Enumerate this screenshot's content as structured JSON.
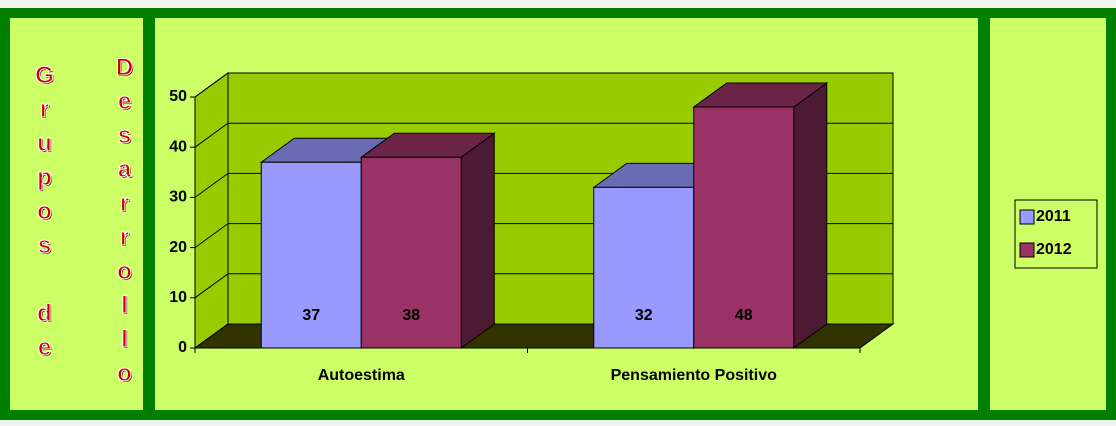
{
  "side_title": [
    "Grupos de",
    "Desarrollo"
  ],
  "chart_data": {
    "type": "bar3d",
    "categories": [
      "Autoestima",
      "Pensamiento Positivo"
    ],
    "series": [
      {
        "name": "2011",
        "color": "#9999ff",
        "values": [
          37,
          32
        ]
      },
      {
        "name": "2012",
        "color": "#993366",
        "values": [
          38,
          48
        ]
      }
    ],
    "ylim": [
      0,
      50
    ],
    "yticks": [
      0,
      10,
      20,
      30,
      40,
      50
    ],
    "grid": true,
    "legend": "right",
    "data_labels": true
  }
}
